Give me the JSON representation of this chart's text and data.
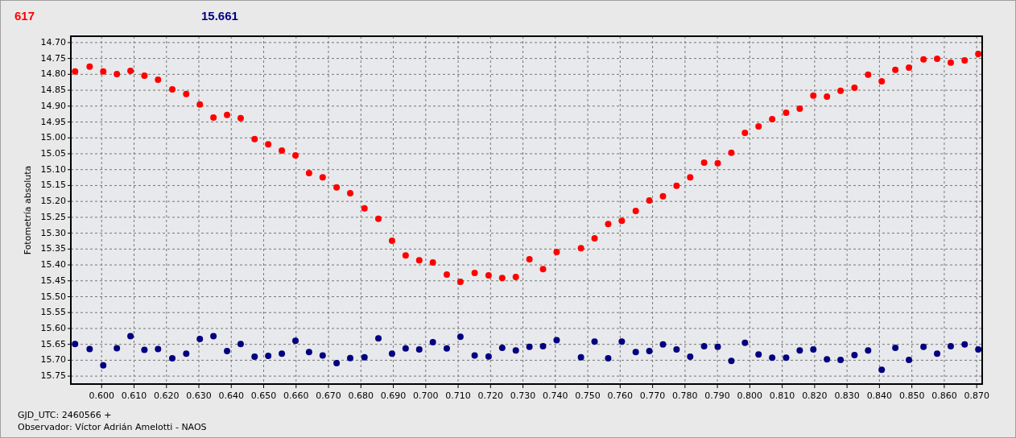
{
  "chart_data": {
    "type": "scatter",
    "ylabel": "Fotometría absoluta",
    "annotations": [
      "GJD_UTC: 2460566 +",
      "Observador: Víctor Adrián Amelotti - NAOS"
    ],
    "x": [
      0.5918,
      0.5963,
      0.6005,
      0.6047,
      0.6089,
      0.6132,
      0.6174,
      0.6218,
      0.6261,
      0.6303,
      0.6345,
      0.6387,
      0.6429,
      0.6472,
      0.6514,
      0.6556,
      0.6598,
      0.664,
      0.6682,
      0.6725,
      0.6767,
      0.6811,
      0.6854,
      0.6896,
      0.6938,
      0.698,
      0.7022,
      0.7065,
      0.7107,
      0.7151,
      0.7194,
      0.7236,
      0.7278,
      0.732,
      0.7362,
      0.7404,
      0.7479,
      0.7521,
      0.7563,
      0.7605,
      0.7648,
      0.769,
      0.7732,
      0.7774,
      0.7816,
      0.7859,
      0.7901,
      0.7943,
      0.7985,
      0.8027,
      0.8069,
      0.8112,
      0.8154,
      0.8196,
      0.8238,
      0.828,
      0.8323,
      0.8365,
      0.8407,
      0.8449,
      0.8491,
      0.8536,
      0.8578,
      0.862,
      0.8663,
      0.8705
    ],
    "series": [
      {
        "name": "617",
        "color": "#ff0000",
        "values": [
          14.791,
          14.776,
          14.791,
          14.799,
          14.789,
          14.804,
          14.817,
          14.847,
          14.862,
          14.895,
          14.936,
          14.928,
          14.938,
          15.004,
          15.02,
          15.04,
          15.055,
          15.111,
          15.124,
          15.156,
          15.174,
          15.222,
          15.255,
          15.324,
          15.37,
          15.385,
          15.392,
          15.43,
          15.453,
          15.425,
          15.433,
          15.441,
          15.438,
          15.382,
          15.413,
          15.359,
          15.347,
          15.316,
          15.271,
          15.261,
          15.23,
          15.197,
          15.184,
          15.151,
          15.124,
          15.078,
          15.08,
          15.047,
          14.984,
          14.964,
          14.941,
          14.921,
          14.908,
          14.867,
          14.87,
          14.852,
          14.842,
          14.801,
          14.822,
          14.786,
          14.779,
          14.753,
          14.751,
          14.763,
          14.756,
          14.736
        ]
      },
      {
        "name": "15.661",
        "color": "#000080",
        "values": [
          15.649,
          15.665,
          15.716,
          15.662,
          15.624,
          15.667,
          15.665,
          15.694,
          15.679,
          15.633,
          15.624,
          15.671,
          15.649,
          15.689,
          15.686,
          15.679,
          15.639,
          15.674,
          15.685,
          15.709,
          15.693,
          15.691,
          15.631,
          15.679,
          15.663,
          15.666,
          15.643,
          15.663,
          15.626,
          15.685,
          15.688,
          15.661,
          15.669,
          15.658,
          15.656,
          15.637,
          15.691,
          15.641,
          15.694,
          15.641,
          15.674,
          15.671,
          15.65,
          15.666,
          15.689,
          15.656,
          15.658,
          15.702,
          15.645,
          15.682,
          15.692,
          15.692,
          15.669,
          15.666,
          15.697,
          15.699,
          15.684,
          15.669,
          15.73,
          15.661,
          15.699,
          15.658,
          15.679,
          15.656,
          15.65,
          15.666
        ]
      }
    ],
    "xlim": [
      0.5905,
      0.8717
    ],
    "ylim": [
      15.775,
      14.68
    ],
    "xticks": [
      {
        "value": 0.6,
        "label": "0.600"
      },
      {
        "value": 0.61,
        "label": "0.610"
      },
      {
        "value": 0.62,
        "label": "0.620"
      },
      {
        "value": 0.63,
        "label": "0.630"
      },
      {
        "value": 0.64,
        "label": "0.640"
      },
      {
        "value": 0.65,
        "label": "0.650"
      },
      {
        "value": 0.66,
        "label": "0.660"
      },
      {
        "value": 0.67,
        "label": "0.670"
      },
      {
        "value": 0.68,
        "label": "0.680"
      },
      {
        "value": 0.69,
        "label": "0.690"
      },
      {
        "value": 0.7,
        "label": "0.700"
      },
      {
        "value": 0.71,
        "label": "0.710"
      },
      {
        "value": 0.72,
        "label": "0.720"
      },
      {
        "value": 0.73,
        "label": "0.730"
      },
      {
        "value": 0.74,
        "label": "0.740"
      },
      {
        "value": 0.75,
        "label": "0.750"
      },
      {
        "value": 0.76,
        "label": "0.760"
      },
      {
        "value": 0.77,
        "label": "0.770"
      },
      {
        "value": 0.78,
        "label": "0.780"
      },
      {
        "value": 0.79,
        "label": "0.790"
      },
      {
        "value": 0.8,
        "label": "0.800"
      },
      {
        "value": 0.81,
        "label": "0.810"
      },
      {
        "value": 0.82,
        "label": "0.820"
      },
      {
        "value": 0.83,
        "label": "0.830"
      },
      {
        "value": 0.84,
        "label": "0.840"
      },
      {
        "value": 0.85,
        "label": "0.850"
      },
      {
        "value": 0.86,
        "label": "0.860"
      },
      {
        "value": 0.87,
        "label": "0.870"
      }
    ],
    "yticks": [
      {
        "value": 14.7,
        "label": "14.70"
      },
      14.75,
      {
        "value": 14.8,
        "label": "14.80"
      },
      14.85,
      {
        "value": 14.9,
        "label": "14.90"
      },
      14.95,
      {
        "value": 15.0,
        "label": "15.00"
      },
      15.05,
      {
        "value": 15.1,
        "label": "15.10"
      },
      15.15,
      {
        "value": 15.2,
        "label": "15.20"
      },
      15.25,
      {
        "value": 15.3,
        "label": "15.30"
      },
      15.35,
      {
        "value": 15.4,
        "label": "15.40"
      },
      15.45,
      {
        "value": 15.5,
        "label": "15.50"
      },
      15.55,
      {
        "value": 15.6,
        "label": "15.60"
      },
      15.65,
      {
        "value": 15.7,
        "label": "15.70"
      },
      15.75
    ],
    "grid": true,
    "marker": "circle",
    "legend": "top left"
  }
}
